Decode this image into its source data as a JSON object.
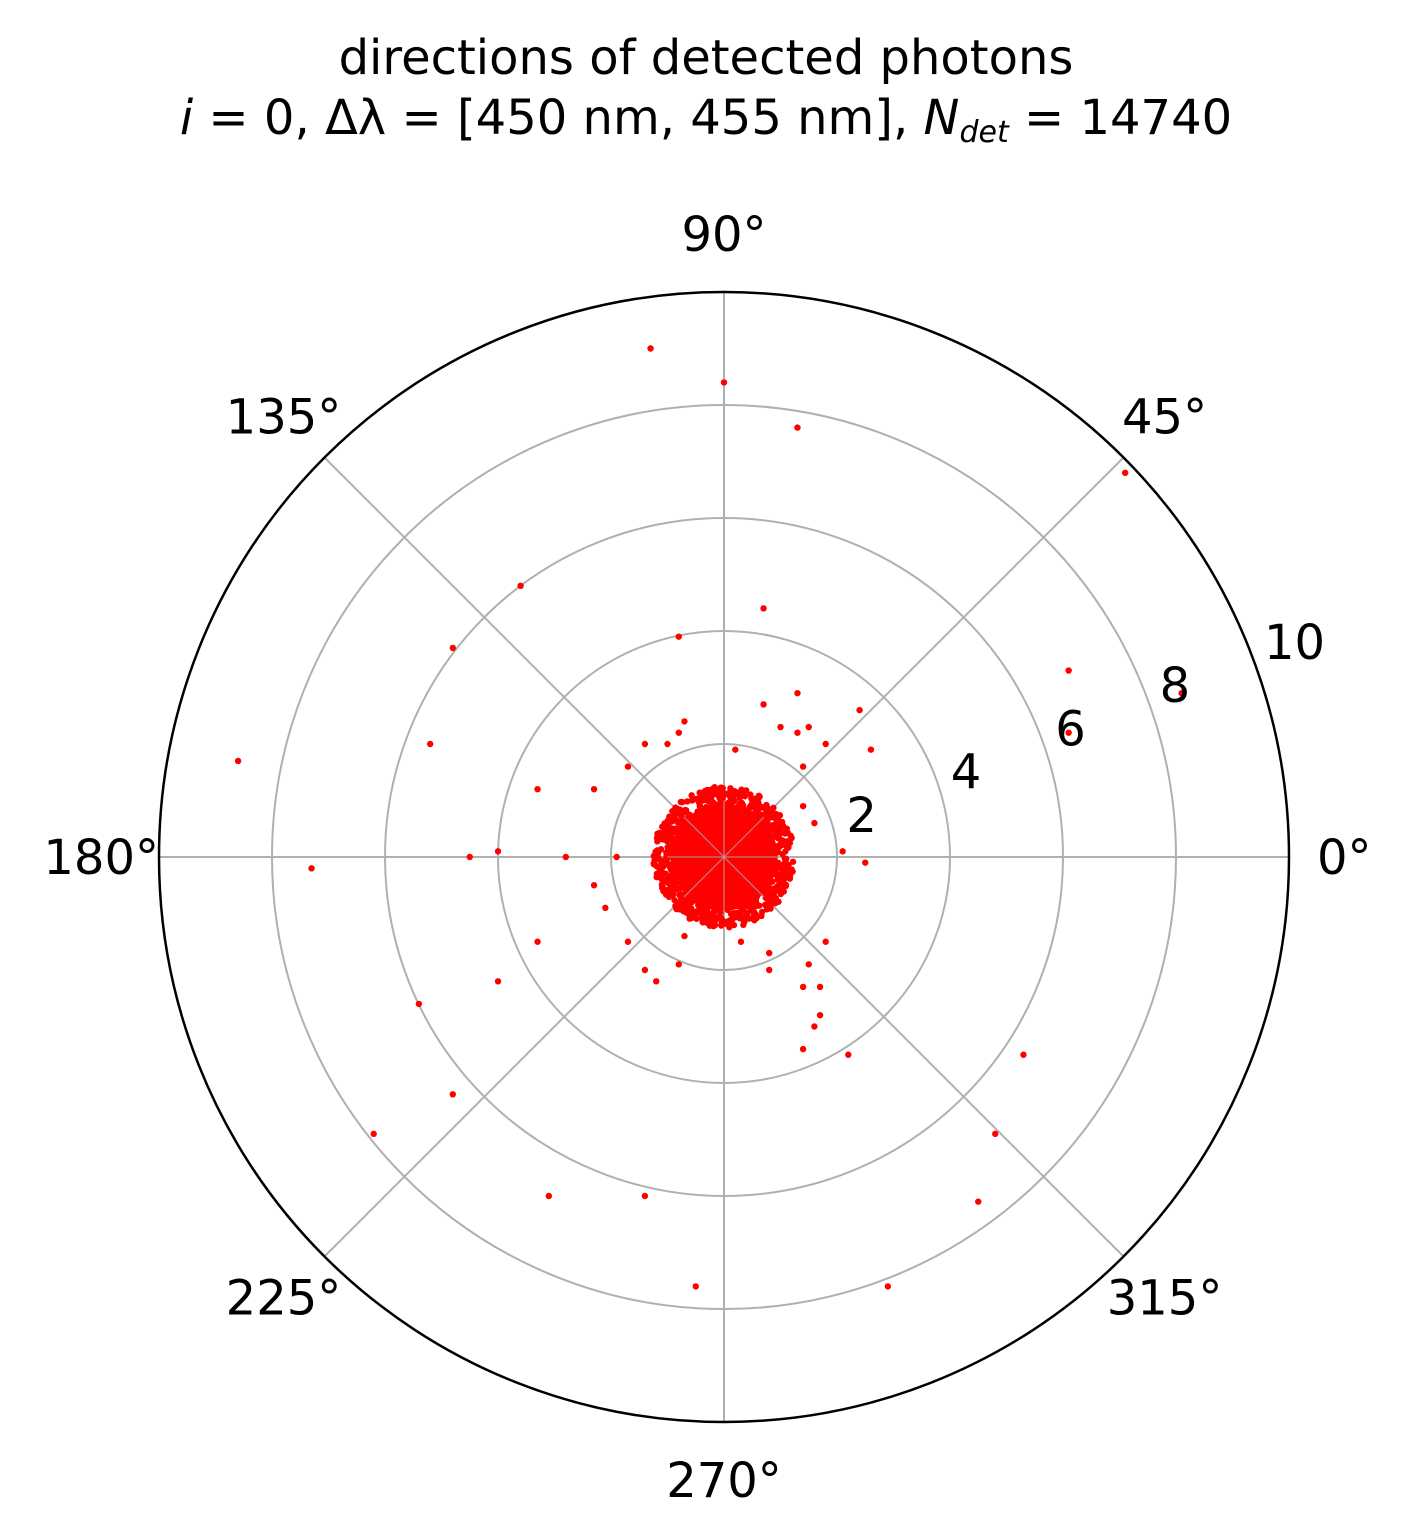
{
  "chart_data": {
    "type": "scatter",
    "projection": "polar",
    "title": "directions of detected photons",
    "subtitle": {
      "i_label": "i",
      "i_value": "0",
      "delta_lambda_label": "Δλ",
      "delta_lambda_range": "[450 nm, 455 nm]",
      "n_label": "N",
      "n_subscript": "det",
      "n_value": "14740"
    },
    "theta_ticks": [
      "0°",
      "45°",
      "90°",
      "135°",
      "180°",
      "225°",
      "270°",
      "315°"
    ],
    "theta_tick_values_deg": [
      0,
      45,
      90,
      135,
      180,
      225,
      270,
      315
    ],
    "r_ticks": [
      "2",
      "4",
      "6",
      "8",
      "10"
    ],
    "r_tick_values": [
      2,
      4,
      6,
      8,
      10
    ],
    "rlim": [
      0,
      10
    ],
    "grid": true,
    "marker_color": "#ff0000",
    "axis_color": "#000000",
    "grid_color": "#b0b0b0",
    "dense_core": {
      "description_r_max": 1.25,
      "note": "dense cluster of points around the origin"
    },
    "points_xy": [
      [
        -1.3,
        9.0
      ],
      [
        0.0,
        8.4
      ],
      [
        1.3,
        7.6
      ],
      [
        7.1,
        6.8
      ],
      [
        -3.6,
        4.8
      ],
      [
        -4.8,
        3.7
      ],
      [
        -0.8,
        3.9
      ],
      [
        0.7,
        4.4
      ],
      [
        6.1,
        3.3
      ],
      [
        6.1,
        2.2
      ],
      [
        8.1,
        2.9
      ],
      [
        -8.6,
        1.7
      ],
      [
        -5.2,
        2.0
      ],
      [
        -3.3,
        1.2
      ],
      [
        -4.0,
        0.1
      ],
      [
        -2.3,
        1.2
      ],
      [
        -1.9,
        0.0
      ],
      [
        -2.8,
        0.0
      ],
      [
        -4.5,
        0.0
      ],
      [
        -7.3,
        -0.2
      ],
      [
        -2.3,
        -0.5
      ],
      [
        -2.1,
        -0.9
      ],
      [
        -1.7,
        -1.5
      ],
      [
        -3.3,
        -1.5
      ],
      [
        -4.0,
        -2.2
      ],
      [
        -5.4,
        -2.6
      ],
      [
        -4.8,
        -4.2
      ],
      [
        -6.2,
        -4.9
      ],
      [
        -3.1,
        -6.0
      ],
      [
        -1.4,
        -6.0
      ],
      [
        -0.5,
        -7.6
      ],
      [
        -0.8,
        -1.9
      ],
      [
        -1.2,
        -2.2
      ],
      [
        -1.4,
        -2.0
      ],
      [
        -0.7,
        -1.4
      ],
      [
        0.3,
        -1.5
      ],
      [
        0.8,
        -1.7
      ],
      [
        0.8,
        -2.0
      ],
      [
        1.4,
        -2.3
      ],
      [
        1.7,
        -2.3
      ],
      [
        1.7,
        -2.8
      ],
      [
        1.4,
        -3.4
      ],
      [
        2.2,
        -3.5
      ],
      [
        5.3,
        -3.5
      ],
      [
        4.8,
        -4.9
      ],
      [
        4.5,
        -6.1
      ],
      [
        2.9,
        -7.6
      ],
      [
        1.8,
        -1.5
      ],
      [
        1.5,
        -1.9
      ],
      [
        1.6,
        -3.0
      ],
      [
        0.2,
        1.9
      ],
      [
        0.7,
        2.7
      ],
      [
        1.0,
        2.3
      ],
      [
        1.3,
        2.2
      ],
      [
        1.5,
        2.3
      ],
      [
        1.8,
        2.0
      ],
      [
        1.4,
        1.6
      ],
      [
        1.3,
        2.9
      ],
      [
        2.6,
        1.9
      ],
      [
        2.4,
        2.6
      ],
      [
        -0.8,
        2.2
      ],
      [
        -0.7,
        2.4
      ],
      [
        -1.4,
        2.0
      ],
      [
        -1.7,
        1.6
      ],
      [
        -1.0,
        2.0
      ],
      [
        2.1,
        0.1
      ],
      [
        2.5,
        -0.1
      ],
      [
        1.4,
        0.9
      ],
      [
        1.6,
        0.6
      ]
    ]
  }
}
